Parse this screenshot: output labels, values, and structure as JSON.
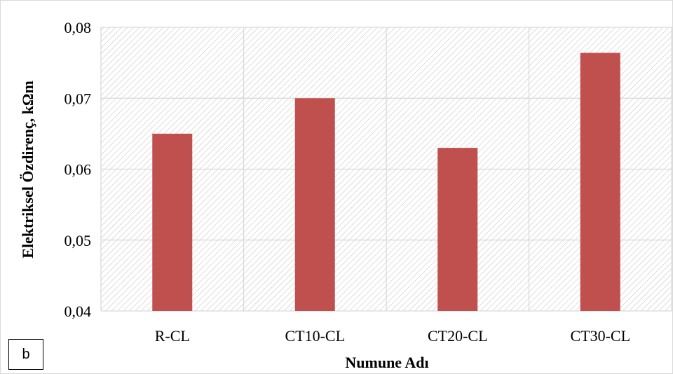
{
  "chart_data": {
    "type": "bar",
    "categories": [
      "R-CL",
      "CT10-CL",
      "CT20-CL",
      "CT30-CL"
    ],
    "values": [
      0.065,
      0.07,
      0.063,
      0.0764
    ],
    "title": "",
    "xlabel": "Numune Adı",
    "ylabel": "Elektriksel Özdirenç, kΩm",
    "ylim": [
      0.04,
      0.08
    ],
    "yticks": [
      "0,04",
      "0,05",
      "0,06",
      "0,07",
      "0,08"
    ],
    "grid": true,
    "legend": "none",
    "colors": {
      "bar": "#C0504D",
      "grid": "#d9d9d9",
      "hatch": "#c8c8c8"
    }
  },
  "panel_label": "b"
}
